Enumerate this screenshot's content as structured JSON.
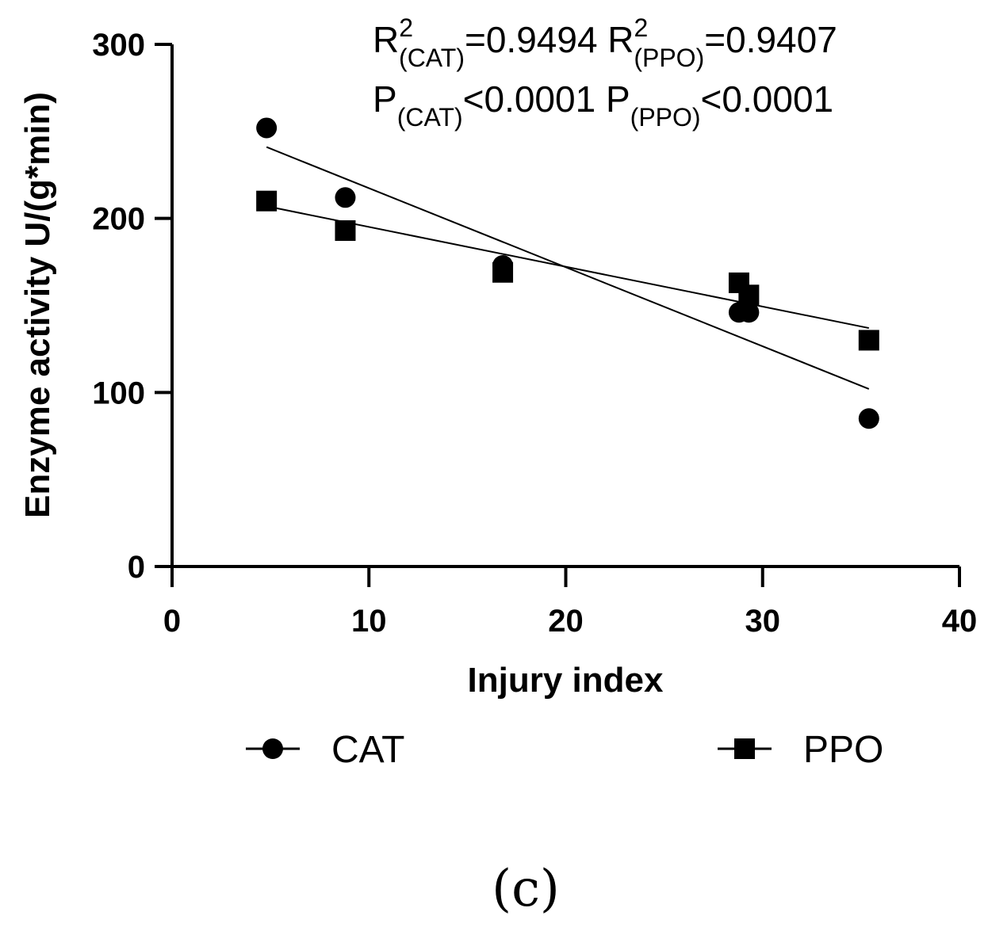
{
  "chart_data": {
    "type": "scatter",
    "xlabel": "Injury index",
    "ylabel": "Enzyme activity U/(g*min)",
    "xlim": [
      0,
      40
    ],
    "ylim": [
      0,
      300
    ],
    "x_ticks": [
      "0",
      "10",
      "20",
      "30",
      "40"
    ],
    "y_ticks": [
      "0",
      "100",
      "200",
      "300"
    ],
    "x_tick_values": [
      0,
      10,
      20,
      30,
      40
    ],
    "y_tick_values": [
      0,
      100,
      200,
      300
    ],
    "series": [
      {
        "name": "CAT",
        "marker": "circle",
        "x": [
          4.8,
          8.8,
          16.8,
          28.8,
          29.3,
          35.4
        ],
        "y": [
          252,
          212,
          173,
          146,
          146,
          85
        ],
        "fit": {
          "x": [
            4.8,
            35.4
          ],
          "y": [
            241,
            102
          ]
        }
      },
      {
        "name": "PPO",
        "marker": "square",
        "x": [
          4.8,
          8.8,
          16.8,
          28.8,
          29.3,
          35.4
        ],
        "y": [
          210,
          193,
          169,
          163,
          156,
          130
        ],
        "fit": {
          "x": [
            4.8,
            35.4
          ],
          "y": [
            207,
            137
          ]
        }
      }
    ],
    "annotations": {
      "line1": {
        "r1": "R",
        "sup1": "2",
        "sub1": "(CAT)",
        "val1": "=0.9494 R",
        "sup2": "2",
        "sub2": "(PPO)",
        "val2": "=0.9407"
      },
      "line2": {
        "p1": "P",
        "sub1": "(CAT)",
        "val1": "<0.0001 P",
        "sub2": "(PPO)",
        "val2": "<0.0001"
      }
    },
    "legend": [
      {
        "label": "CAT",
        "marker": "circle"
      },
      {
        "label": "PPO",
        "marker": "square"
      }
    ],
    "legend_position": "bottom",
    "panel_label": "(c)"
  }
}
